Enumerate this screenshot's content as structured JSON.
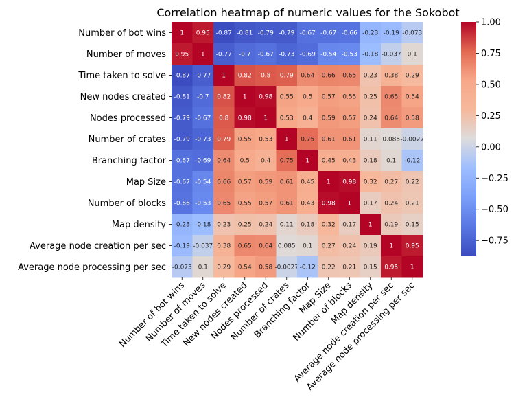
{
  "chart_data": {
    "type": "heatmap",
    "title": "Correlation heatmap of numeric values for the Sokobot",
    "colormap": "coolwarm",
    "vmin": -0.87,
    "vmax": 1.0,
    "labels": [
      "Number of bot wins",
      "Number of moves",
      "Time taken to solve",
      "New nodes created",
      "Nodes processed",
      "Number of crates",
      "Branching factor",
      "Map Size",
      "Number of blocks",
      "Map density",
      "Average node creation per sec",
      "Average node processing per sec"
    ],
    "matrix": [
      [
        "1",
        "0.95",
        "-0.87",
        "-0.81",
        "-0.79",
        "-0.79",
        "-0.67",
        "-0.67",
        "-0.66",
        "-0.23",
        "-0.19",
        "-0.073"
      ],
      [
        "0.95",
        "1",
        "-0.77",
        "-0.7",
        "-0.67",
        "-0.73",
        "-0.69",
        "-0.54",
        "-0.53",
        "-0.18",
        "-0.037",
        "0.1"
      ],
      [
        "-0.87",
        "-0.77",
        "1",
        "0.82",
        "0.8",
        "0.79",
        "0.64",
        "0.66",
        "0.65",
        "0.23",
        "0.38",
        "0.29"
      ],
      [
        "-0.81",
        "-0.7",
        "0.82",
        "1",
        "0.98",
        "0.55",
        "0.5",
        "0.57",
        "0.55",
        "0.25",
        "0.65",
        "0.54"
      ],
      [
        "-0.79",
        "-0.67",
        "0.8",
        "0.98",
        "1",
        "0.53",
        "0.4",
        "0.59",
        "0.57",
        "0.24",
        "0.64",
        "0.58"
      ],
      [
        "-0.79",
        "-0.73",
        "0.79",
        "0.55",
        "0.53",
        "1",
        "0.75",
        "0.61",
        "0.61",
        "0.11",
        "0.085",
        "-0.0027"
      ],
      [
        "-0.67",
        "-0.69",
        "0.64",
        "0.5",
        "0.4",
        "0.75",
        "1",
        "0.45",
        "0.43",
        "0.18",
        "0.1",
        "-0.12"
      ],
      [
        "-0.67",
        "-0.54",
        "0.66",
        "0.57",
        "0.59",
        "0.61",
        "0.45",
        "1",
        "0.98",
        "0.32",
        "0.27",
        "0.22"
      ],
      [
        "-0.66",
        "-0.53",
        "0.65",
        "0.55",
        "0.57",
        "0.61",
        "0.43",
        "0.98",
        "1",
        "0.17",
        "0.24",
        "0.21"
      ],
      [
        "-0.23",
        "-0.18",
        "0.23",
        "0.25",
        "0.24",
        "0.11",
        "0.18",
        "0.32",
        "0.17",
        "1",
        "0.19",
        "0.15"
      ],
      [
        "-0.19",
        "-0.037",
        "0.38",
        "0.65",
        "0.64",
        "0.085",
        "0.1",
        "0.27",
        "0.24",
        "0.19",
        "1",
        "0.95"
      ],
      [
        "-0.073",
        "0.1",
        "0.29",
        "0.54",
        "0.58",
        "-0.0027",
        "-0.12",
        "0.22",
        "0.21",
        "0.15",
        "0.95",
        "1"
      ]
    ],
    "colorbar_ticks": [
      {
        "value": 1.0,
        "label": "1.00"
      },
      {
        "value": 0.75,
        "label": "0.75"
      },
      {
        "value": 0.5,
        "label": "0.50"
      },
      {
        "value": 0.25,
        "label": "0.25"
      },
      {
        "value": 0.0,
        "label": "0.00"
      },
      {
        "value": -0.25,
        "label": "−0.25"
      },
      {
        "value": -0.5,
        "label": "−0.50"
      },
      {
        "value": -0.75,
        "label": "−0.75"
      }
    ]
  }
}
